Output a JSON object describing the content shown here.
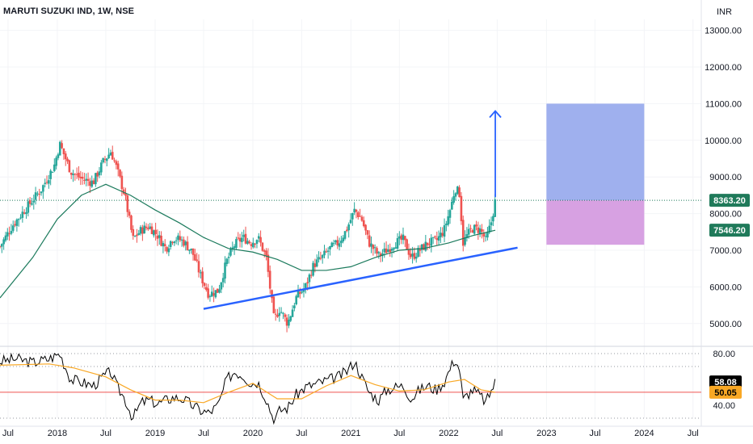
{
  "header": {
    "title": "MARUTI SUZUKI IND, 1W, NSE",
    "currency": "INR"
  },
  "chart_data": [
    {
      "type": "candlestick",
      "symbol": "MARUTI SUZUKI IND",
      "interval": "1W",
      "exchange": "NSE",
      "currency": "INR",
      "ylim": [
        4400,
        13300
      ],
      "y_ticks": [
        5000,
        6000,
        7000,
        8000,
        9000,
        10000,
        11000,
        12000,
        13000
      ],
      "y_tick_labels": [
        "5000.00",
        "6000.00",
        "7000.00",
        "8000.00",
        "9000.00",
        "10000.00",
        "11000.00",
        "12000.00",
        "13000.00"
      ],
      "x_tick_labels": [
        "Jul",
        "2018",
        "Jul",
        "2019",
        "Jul",
        "2020",
        "Jul",
        "2021",
        "Jul",
        "2022",
        "Jul",
        "2023",
        "Jul",
        "2024",
        "Jul"
      ],
      "x_tick_dates": [
        "2017-07",
        "2018-01",
        "2018-07",
        "2019-01",
        "2019-07",
        "2020-01",
        "2020-07",
        "2021-01",
        "2021-07",
        "2022-01",
        "2022-07",
        "2023-01",
        "2023-07",
        "2024-01",
        "2024-07"
      ],
      "x_range": [
        "2017-06-01",
        "2024-08-01"
      ],
      "price_path": [
        [
          "2017-06-01",
          7100
        ],
        [
          "2017-07-15",
          7650
        ],
        [
          "2017-09-01",
          8100
        ],
        [
          "2017-11-01",
          8650
        ],
        [
          "2017-12-20",
          9300
        ],
        [
          "2018-01-10",
          9900
        ],
        [
          "2018-02-20",
          9150
        ],
        [
          "2018-04-01",
          8950
        ],
        [
          "2018-05-15",
          8850
        ],
        [
          "2018-06-20",
          9400
        ],
        [
          "2018-07-20",
          9700
        ],
        [
          "2018-08-10",
          9250
        ],
        [
          "2018-09-10",
          8500
        ],
        [
          "2018-10-10",
          7300
        ],
        [
          "2018-11-10",
          7550
        ],
        [
          "2018-12-10",
          7650
        ],
        [
          "2019-01-10",
          7400
        ],
        [
          "2019-02-10",
          7050
        ],
        [
          "2019-03-10",
          7350
        ],
        [
          "2019-04-15",
          7250
        ],
        [
          "2019-05-20",
          6950
        ],
        [
          "2019-06-20",
          6300
        ],
        [
          "2019-07-20",
          5800
        ],
        [
          "2019-08-25",
          5900
        ],
        [
          "2019-09-25",
          6700
        ],
        [
          "2019-10-25",
          7150
        ],
        [
          "2019-11-25",
          7350
        ],
        [
          "2019-12-25",
          7200
        ],
        [
          "2020-01-20",
          7350
        ],
        [
          "2020-02-20",
          6800
        ],
        [
          "2020-03-20",
          5100
        ],
        [
          "2020-04-10",
          5400
        ],
        [
          "2020-05-10",
          5000
        ],
        [
          "2020-06-10",
          5700
        ],
        [
          "2020-07-15",
          6000
        ],
        [
          "2020-08-15",
          6600
        ],
        [
          "2020-09-15",
          6800
        ],
        [
          "2020-10-15",
          7050
        ],
        [
          "2020-11-15",
          7200
        ],
        [
          "2020-12-15",
          7550
        ],
        [
          "2021-01-15",
          8100
        ],
        [
          "2021-02-10",
          7850
        ],
        [
          "2021-03-10",
          7200
        ],
        [
          "2021-04-15",
          6850
        ],
        [
          "2021-05-15",
          7000
        ],
        [
          "2021-06-15",
          7200
        ],
        [
          "2021-07-15",
          7300
        ],
        [
          "2021-08-15",
          6800
        ],
        [
          "2021-09-15",
          7000
        ],
        [
          "2021-10-15",
          7200
        ],
        [
          "2021-11-15",
          7250
        ],
        [
          "2021-12-15",
          7550
        ],
        [
          "2022-01-10",
          8200
        ],
        [
          "2022-01-25",
          8700
        ],
        [
          "2022-02-10",
          8550
        ],
        [
          "2022-02-24",
          7200
        ],
        [
          "2022-03-10",
          7400
        ],
        [
          "2022-04-01",
          7600
        ],
        [
          "2022-05-01",
          7550
        ],
        [
          "2022-05-20",
          7250
        ],
        [
          "2022-06-10",
          7800
        ],
        [
          "2022-06-24",
          8363.2
        ]
      ],
      "moving_average_path": [
        [
          "2017-06-01",
          5700
        ],
        [
          "2017-10-01",
          6800
        ],
        [
          "2018-01-01",
          7850
        ],
        [
          "2018-04-01",
          8500
        ],
        [
          "2018-07-01",
          8800
        ],
        [
          "2018-10-01",
          8500
        ],
        [
          "2019-01-01",
          8100
        ],
        [
          "2019-04-01",
          7750
        ],
        [
          "2019-07-01",
          7350
        ],
        [
          "2019-10-01",
          7050
        ],
        [
          "2020-01-01",
          6950
        ],
        [
          "2020-04-01",
          6750
        ],
        [
          "2020-07-01",
          6450
        ],
        [
          "2020-10-01",
          6450
        ],
        [
          "2021-01-01",
          6550
        ],
        [
          "2021-04-01",
          6800
        ],
        [
          "2021-07-01",
          7000
        ],
        [
          "2021-10-01",
          7050
        ],
        [
          "2022-01-01",
          7200
        ],
        [
          "2022-04-01",
          7400
        ],
        [
          "2022-06-24",
          7546.2
        ]
      ],
      "support_line": {
        "start": [
          "2019-07-01",
          5400
        ],
        "end": [
          "2022-09-15",
          7070
        ]
      },
      "projection_arrow": {
        "from": [
          "2022-06-24",
          8450
        ],
        "to": [
          "2022-06-24",
          10800
        ]
      },
      "target_box": {
        "x_range": [
          "2023-01-01",
          "2024-01-01"
        ],
        "target": [
          8363.2,
          11000
        ],
        "stop": [
          7150,
          8363.2
        ],
        "target_color": "#9fb0ee",
        "stop_color": "#d7a1e2"
      },
      "last_price_line": 8363.2,
      "price_badges": [
        {
          "label": "8363.20",
          "value": 8363.2,
          "color": "#1f7a5a"
        },
        {
          "label": "7546.20",
          "value": 7546.2,
          "color": "#1f7a5a"
        }
      ],
      "colors": {
        "up": "#26a69a",
        "down": "#ef5350",
        "ma": "#1b7a5c",
        "trend": "#2962ff",
        "grid": "#f3f4f7"
      }
    },
    {
      "type": "line",
      "name": "RSI",
      "ylim": [
        30,
        85
      ],
      "levels": [
        30,
        70,
        80
      ],
      "ticks": [
        40,
        60,
        80
      ],
      "tick_labels": [
        "40.00",
        "60.00",
        "80.00"
      ],
      "rsi_path": [
        [
          "2017-06-01",
          74
        ],
        [
          "2017-08-01",
          76
        ],
        [
          "2017-10-01",
          73
        ],
        [
          "2017-12-01",
          76
        ],
        [
          "2018-01-10",
          80
        ],
        [
          "2018-02-20",
          60
        ],
        [
          "2018-04-01",
          58
        ],
        [
          "2018-05-15",
          55
        ],
        [
          "2018-06-20",
          62
        ],
        [
          "2018-07-20",
          66
        ],
        [
          "2018-08-10",
          55
        ],
        [
          "2018-09-10",
          45
        ],
        [
          "2018-10-10",
          30
        ],
        [
          "2018-11-10",
          42
        ],
        [
          "2018-12-10",
          44
        ],
        [
          "2019-01-10",
          41
        ],
        [
          "2019-02-10",
          44
        ],
        [
          "2019-03-10",
          46
        ],
        [
          "2019-04-15",
          45
        ],
        [
          "2019-05-20",
          40
        ],
        [
          "2019-06-20",
          36
        ],
        [
          "2019-07-20",
          34
        ],
        [
          "2019-08-25",
          40
        ],
        [
          "2019-09-25",
          60
        ],
        [
          "2019-10-25",
          66
        ],
        [
          "2019-11-25",
          63
        ],
        [
          "2019-12-25",
          57
        ],
        [
          "2020-01-20",
          58
        ],
        [
          "2020-02-20",
          45
        ],
        [
          "2020-03-20",
          28
        ],
        [
          "2020-04-10",
          36
        ],
        [
          "2020-05-10",
          38
        ],
        [
          "2020-06-10",
          48
        ],
        [
          "2020-07-15",
          54
        ],
        [
          "2020-08-15",
          56
        ],
        [
          "2020-09-15",
          58
        ],
        [
          "2020-10-15",
          60
        ],
        [
          "2020-11-15",
          62
        ],
        [
          "2020-12-15",
          66
        ],
        [
          "2021-01-15",
          74
        ],
        [
          "2021-02-10",
          62
        ],
        [
          "2021-03-10",
          50
        ],
        [
          "2021-04-15",
          44
        ],
        [
          "2021-05-15",
          52
        ],
        [
          "2021-06-15",
          54
        ],
        [
          "2021-07-15",
          55
        ],
        [
          "2021-08-15",
          45
        ],
        [
          "2021-09-15",
          52
        ],
        [
          "2021-10-15",
          55
        ],
        [
          "2021-11-15",
          52
        ],
        [
          "2021-12-15",
          58
        ],
        [
          "2022-01-10",
          70
        ],
        [
          "2022-01-25",
          76
        ],
        [
          "2022-02-10",
          68
        ],
        [
          "2022-02-24",
          44
        ],
        [
          "2022-03-10",
          48
        ],
        [
          "2022-04-01",
          52
        ],
        [
          "2022-05-01",
          47
        ],
        [
          "2022-05-20",
          42
        ],
        [
          "2022-06-10",
          52
        ],
        [
          "2022-06-24",
          58.08
        ]
      ],
      "signal_path": [
        [
          "2017-06-01",
          71
        ],
        [
          "2017-12-01",
          72
        ],
        [
          "2018-03-01",
          69
        ],
        [
          "2018-07-01",
          62
        ],
        [
          "2018-10-01",
          52
        ],
        [
          "2019-01-01",
          44
        ],
        [
          "2019-04-01",
          44
        ],
        [
          "2019-07-01",
          42
        ],
        [
          "2019-10-01",
          50
        ],
        [
          "2020-01-01",
          57
        ],
        [
          "2020-04-01",
          45
        ],
        [
          "2020-07-01",
          45
        ],
        [
          "2020-10-01",
          55
        ],
        [
          "2021-01-01",
          63
        ],
        [
          "2021-04-01",
          56
        ],
        [
          "2021-07-01",
          51
        ],
        [
          "2021-10-01",
          52
        ],
        [
          "2022-01-01",
          58
        ],
        [
          "2022-03-01",
          60
        ],
        [
          "2022-05-01",
          52
        ],
        [
          "2022-06-24",
          50.05
        ]
      ],
      "badges": [
        {
          "label": "58.08",
          "value": 58.08,
          "color": "#000000",
          "text_color": "#ffffff"
        },
        {
          "label": "50.05",
          "value": 50.05,
          "color": "#f9a825",
          "text_color": "#000000"
        }
      ],
      "colors": {
        "rsi": "#000000",
        "signal": "#f9a825",
        "mid": "#ef5350"
      }
    }
  ]
}
